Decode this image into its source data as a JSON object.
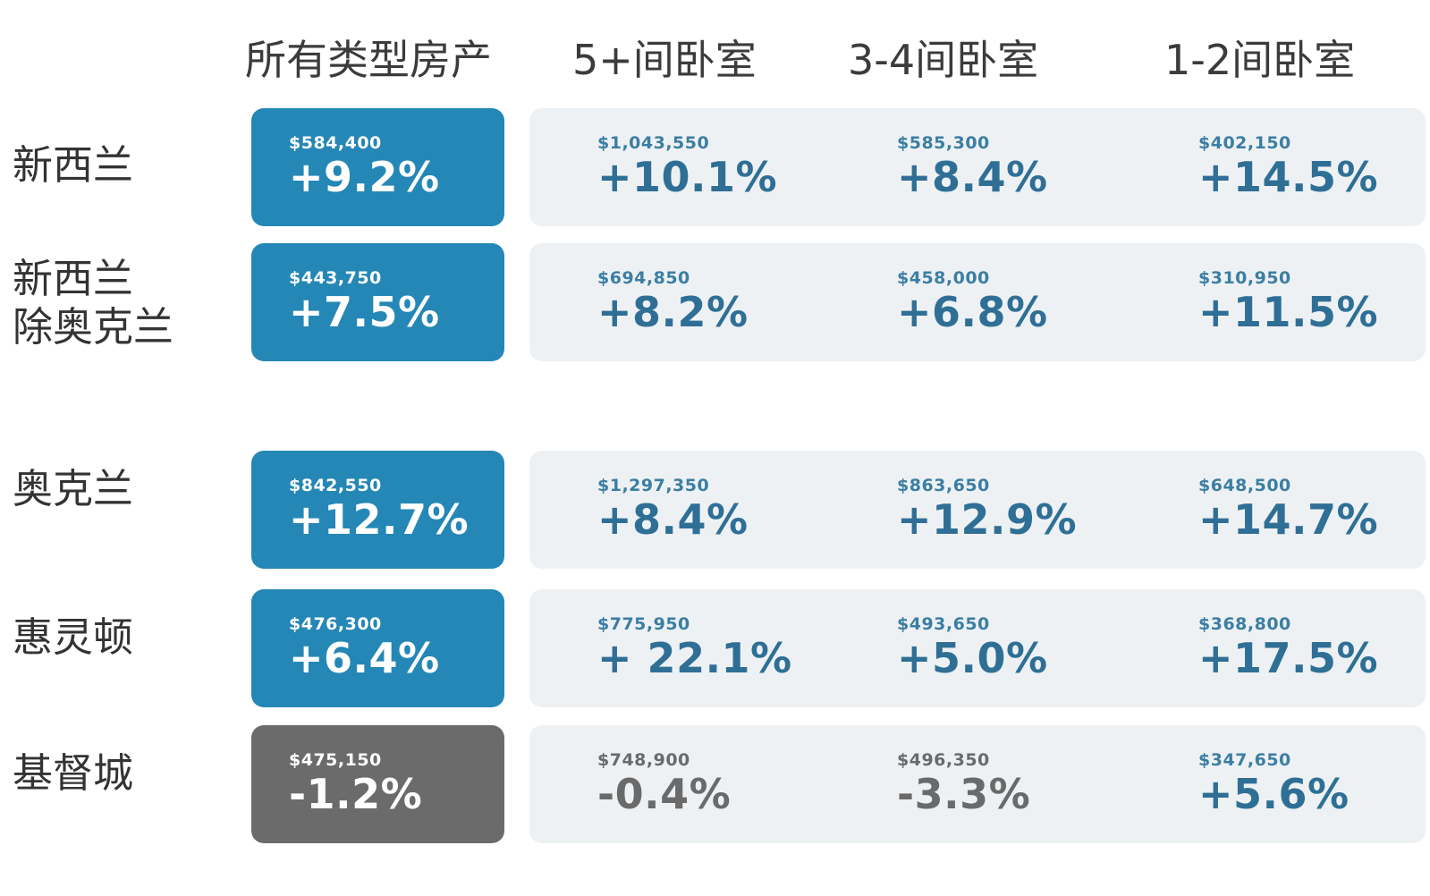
{
  "chart_data": {
    "type": "table",
    "columns": [
      "所有类型房产",
      "5+间卧室",
      "3-4间卧室",
      "1-2间卧室"
    ],
    "rows": [
      {
        "label": "新西兰",
        "cells": [
          {
            "price": "$584,400",
            "change": "+9.2%"
          },
          {
            "price": "$1,043,550",
            "change": "+10.1%"
          },
          {
            "price": "$585,300",
            "change": "+8.4%"
          },
          {
            "price": "$402,150",
            "change": "+14.5%"
          }
        ]
      },
      {
        "label": "新西兰\n除奥克兰",
        "cells": [
          {
            "price": "$443,750",
            "change": "+7.5%"
          },
          {
            "price": "$694,850",
            "change": "+8.2%"
          },
          {
            "price": "$458,000",
            "change": "+6.8%"
          },
          {
            "price": "$310,950",
            "change": "+11.5%"
          }
        ]
      },
      {
        "label": "奥克兰",
        "cells": [
          {
            "price": "$842,550",
            "change": "+12.7%"
          },
          {
            "price": "$1,297,350",
            "change": "+8.4%"
          },
          {
            "price": "$863,650",
            "change": "+12.9%"
          },
          {
            "price": "$648,500",
            "change": "+14.7%"
          }
        ]
      },
      {
        "label": "惠灵顿",
        "cells": [
          {
            "price": "$476,300",
            "change": "+6.4%"
          },
          {
            "price": "$775,950",
            "change": "+ 22.1%"
          },
          {
            "price": "$493,650",
            "change": "+5.0%"
          },
          {
            "price": "$368,800",
            "change": "+17.5%"
          }
        ]
      },
      {
        "label": "基督城",
        "cells": [
          {
            "price": "$475,150",
            "change": "-1.2%"
          },
          {
            "price": "$748,900",
            "change": "-0.4%"
          },
          {
            "price": "$496,350",
            "change": "-3.3%"
          },
          {
            "price": "$347,650",
            "change": "+5.6%"
          }
        ]
      }
    ]
  },
  "colors": {
    "main_positive": "#2487b6",
    "main_negative": "#6b6b6b",
    "band_background": "#eef1f3",
    "value_positive": "#2f6f96",
    "value_negative": "#6a6a6a"
  }
}
